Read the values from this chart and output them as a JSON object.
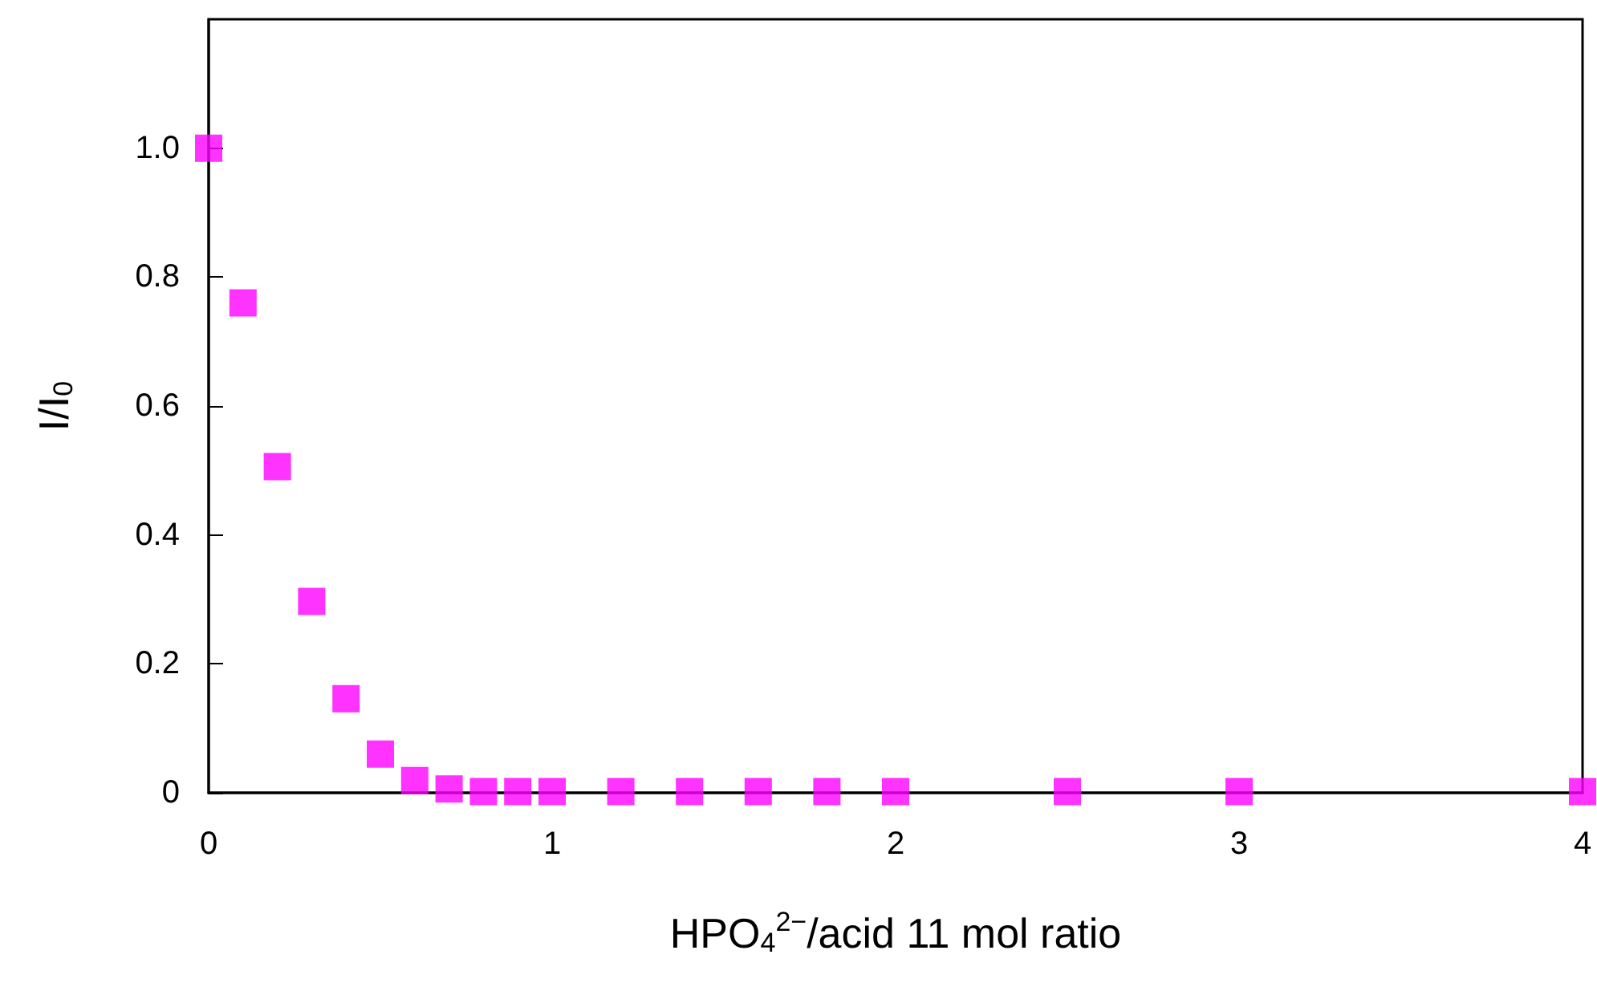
{
  "chart_data": {
    "type": "scatter",
    "xlabel": "HPO$_{4}$$^{2−}$/acid 11 mol ratio",
    "ylabel": "I/I$_{0}$",
    "x": [
      0,
      0.1,
      0.2,
      0.3,
      0.4,
      0.5,
      0.6,
      0.7,
      0.8,
      0.9,
      1.0,
      1.2,
      1.4,
      1.6,
      1.8,
      2.0,
      2.5,
      3,
      4
    ],
    "series": [
      {
        "color": "#ff00ff",
        "values": [
          1.0,
          0.76,
          0.506,
          0.297,
          0.146,
          0.06,
          0.019,
          0.006,
          0.002,
          0.002,
          0.002,
          0.002,
          0.002,
          0.002,
          0.002,
          0.002,
          0.002,
          0.002,
          0.002
        ]
      }
    ],
    "xlim": [
      0,
      4
    ],
    "xticks": [
      0,
      1,
      2,
      3,
      4
    ],
    "ylim": [
      0,
      1.2
    ],
    "yticks": [
      0,
      0.2,
      0.4,
      0.6,
      0.8,
      {
        "value": 1,
        "label": "1.0"
      }
    ],
    "marker": "square",
    "grid": false
  }
}
